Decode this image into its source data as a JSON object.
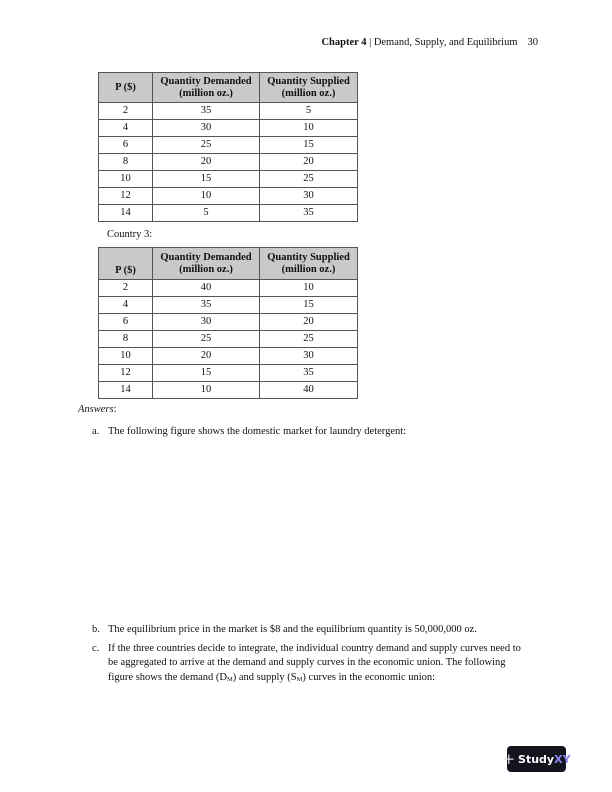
{
  "header": {
    "chapter": "Chapter 4",
    "separator": " | ",
    "title": "Demand, Supply, and Equilibrium",
    "page": "30"
  },
  "table1": {
    "headers": [
      "P ($)",
      "Quantity Demanded (million oz.)",
      "Quantity Supplied (million oz.)"
    ],
    "rows": [
      [
        "2",
        "35",
        "5"
      ],
      [
        "4",
        "30",
        "10"
      ],
      [
        "6",
        "25",
        "15"
      ],
      [
        "8",
        "20",
        "20"
      ],
      [
        "10",
        "15",
        "25"
      ],
      [
        "12",
        "10",
        "30"
      ],
      [
        "14",
        "5",
        "35"
      ]
    ]
  },
  "country3_label": "Country 3:",
  "table2": {
    "headers": [
      "P ($)",
      "Quantity Demanded (million oz.)",
      "Quantity Supplied (million oz.)"
    ],
    "rows": [
      [
        "2",
        "40",
        "10"
      ],
      [
        "4",
        "35",
        "15"
      ],
      [
        "6",
        "30",
        "20"
      ],
      [
        "8",
        "25",
        "25"
      ],
      [
        "10",
        "20",
        "30"
      ],
      [
        "12",
        "15",
        "35"
      ],
      [
        "14",
        "10",
        "40"
      ]
    ]
  },
  "answers_label": "Answers",
  "answers_colon": ":",
  "items": {
    "a": {
      "label": "a.",
      "text": "The following figure shows the domestic market for laundry detergent:"
    },
    "b": {
      "label": "b.",
      "text": "The equilibrium price in the market is $8 and the equilibrium quantity is 50,000,000 oz."
    },
    "c": {
      "label": "c.",
      "text_1": "If the three countries decide to integrate, the individual country demand and supply curves need to be aggregated to arrive at the demand and supply curves in the economic union. The following figure shows the demand (D",
      "sub_1": "M",
      "text_2": ") and supply (S",
      "sub_2": "M",
      "text_3": ") curves in the economic union:"
    }
  },
  "logo": {
    "text": "Study",
    "accent": "XY",
    "accent_color": "#8c84f0",
    "background": "#14141f"
  }
}
